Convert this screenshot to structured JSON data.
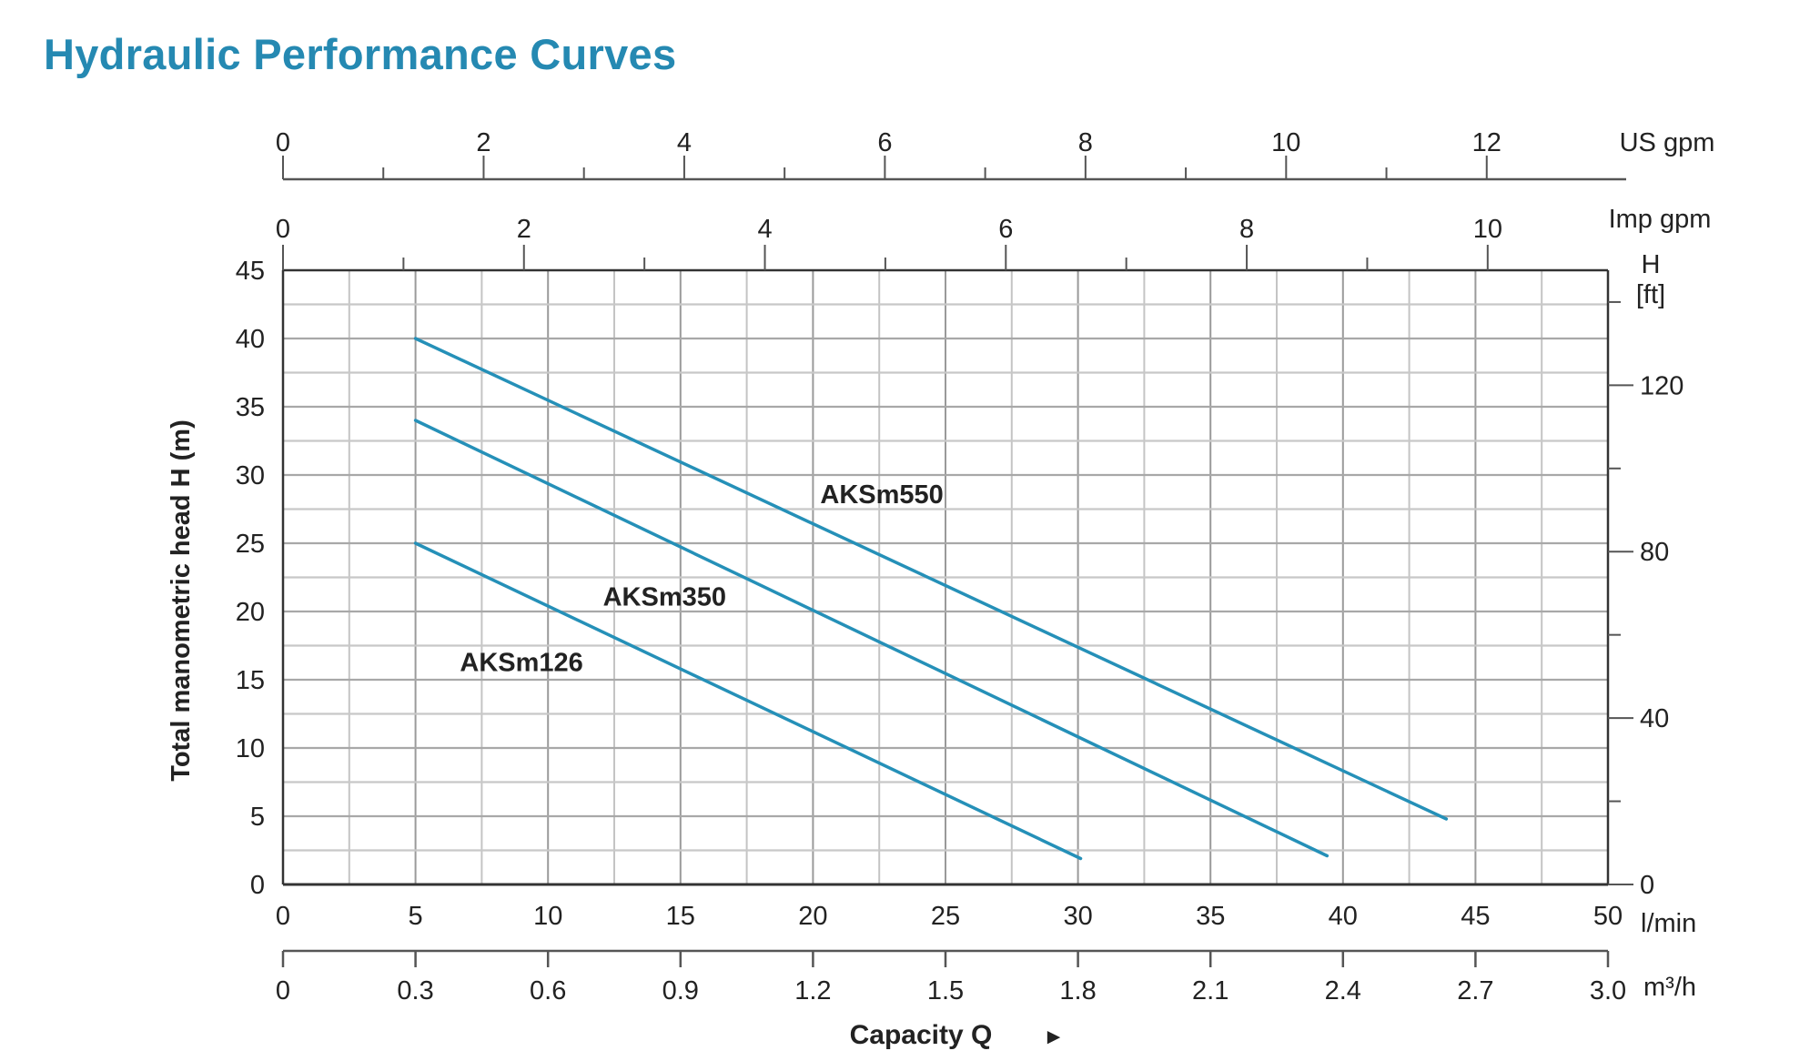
{
  "chart_data": {
    "type": "line",
    "title": "Hydraulic Performance Curves",
    "xlabel": "Capacity Q",
    "ylabel": "Total manometric head H (m)",
    "x_unit": "l/min",
    "xlim": [
      0,
      50
    ],
    "ylim": [
      0,
      45
    ],
    "grid": true,
    "x_ticks": [
      0,
      5,
      10,
      15,
      20,
      25,
      30,
      35,
      40,
      45,
      50
    ],
    "y_ticks": [
      0,
      5,
      10,
      15,
      20,
      25,
      30,
      35,
      40,
      45
    ],
    "secondary_axes": {
      "us_gpm": {
        "label": "US gpm",
        "ticks": [
          "0",
          "2",
          "4",
          "6",
          "8",
          "10",
          "12"
        ]
      },
      "imp_gpm": {
        "label": "Imp gpm",
        "ticks": [
          "0",
          "2",
          "4",
          "6",
          "8",
          "10"
        ]
      },
      "m3h": {
        "label": "m³/h",
        "ticks": [
          "0",
          "0.3",
          "0.6",
          "0.9",
          "1.2",
          "1.5",
          "1.8",
          "2.1",
          "2.4",
          "2.7",
          "3.0"
        ]
      },
      "h_ft": {
        "label_line1": "H",
        "label_line2": "[ft]",
        "ticks": [
          "0",
          "40",
          "80",
          "120"
        ]
      }
    },
    "series": [
      {
        "name": "AKSm550",
        "x": [
          5,
          43.9
        ],
        "y": [
          40,
          4.8
        ],
        "label_at": [
          22.6,
          28.6
        ]
      },
      {
        "name": "AKSm350",
        "x": [
          5,
          39.4
        ],
        "y": [
          34,
          2.1
        ],
        "label_at": [
          14.4,
          21.1
        ]
      },
      {
        "name": "AKSm126",
        "x": [
          5,
          30.1
        ],
        "y": [
          25,
          1.9
        ],
        "label_at": [
          9.0,
          16.3
        ]
      }
    ],
    "line_color": "#2590b8",
    "title_color": "#2589b2",
    "arrow_glyph": "►"
  }
}
